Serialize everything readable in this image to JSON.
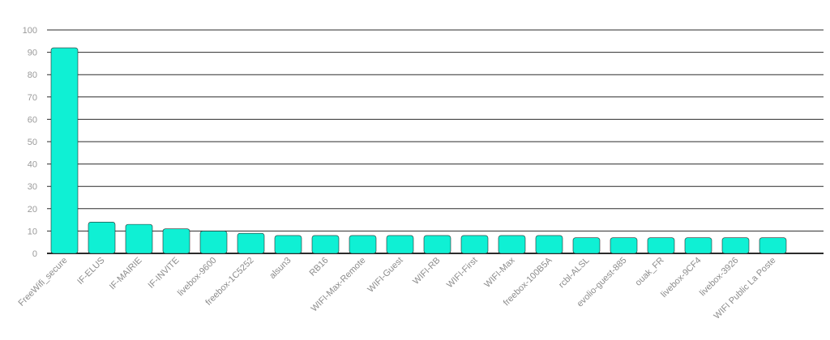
{
  "chart_data": {
    "type": "bar",
    "title": "",
    "xlabel": "",
    "ylabel": "",
    "categories": [
      "FreeWifi_secure",
      "IF-ELUS",
      "IF-MAIRIE",
      "IF-INVITE",
      "livebox-9600",
      "freebox-1C5252",
      "alsun3",
      "RB16",
      "WIFI-Max-Remote",
      "WIFI-Guest",
      "WIFI-RB",
      "WIFI-First",
      "WIFI-Max",
      "freebox-100B5A",
      "rcbl-ALSL",
      "evolio-guest-885",
      "ouak_FR",
      "livebox-9CF4",
      "livebox-3926",
      "WIFI Public La Poste"
    ],
    "values": [
      92,
      14,
      13,
      11,
      10,
      9,
      8,
      8,
      8,
      8,
      8,
      8,
      8,
      8,
      7,
      7,
      7,
      7,
      7,
      7
    ],
    "ylim": [
      0,
      100
    ],
    "yticks": [
      0,
      10,
      20,
      30,
      40,
      50,
      60,
      70,
      80,
      90,
      100
    ],
    "grid": true,
    "bar_color": "#0ff0d4",
    "grid_color": "#2b2b2b",
    "label_color": "#9a9a9a"
  }
}
